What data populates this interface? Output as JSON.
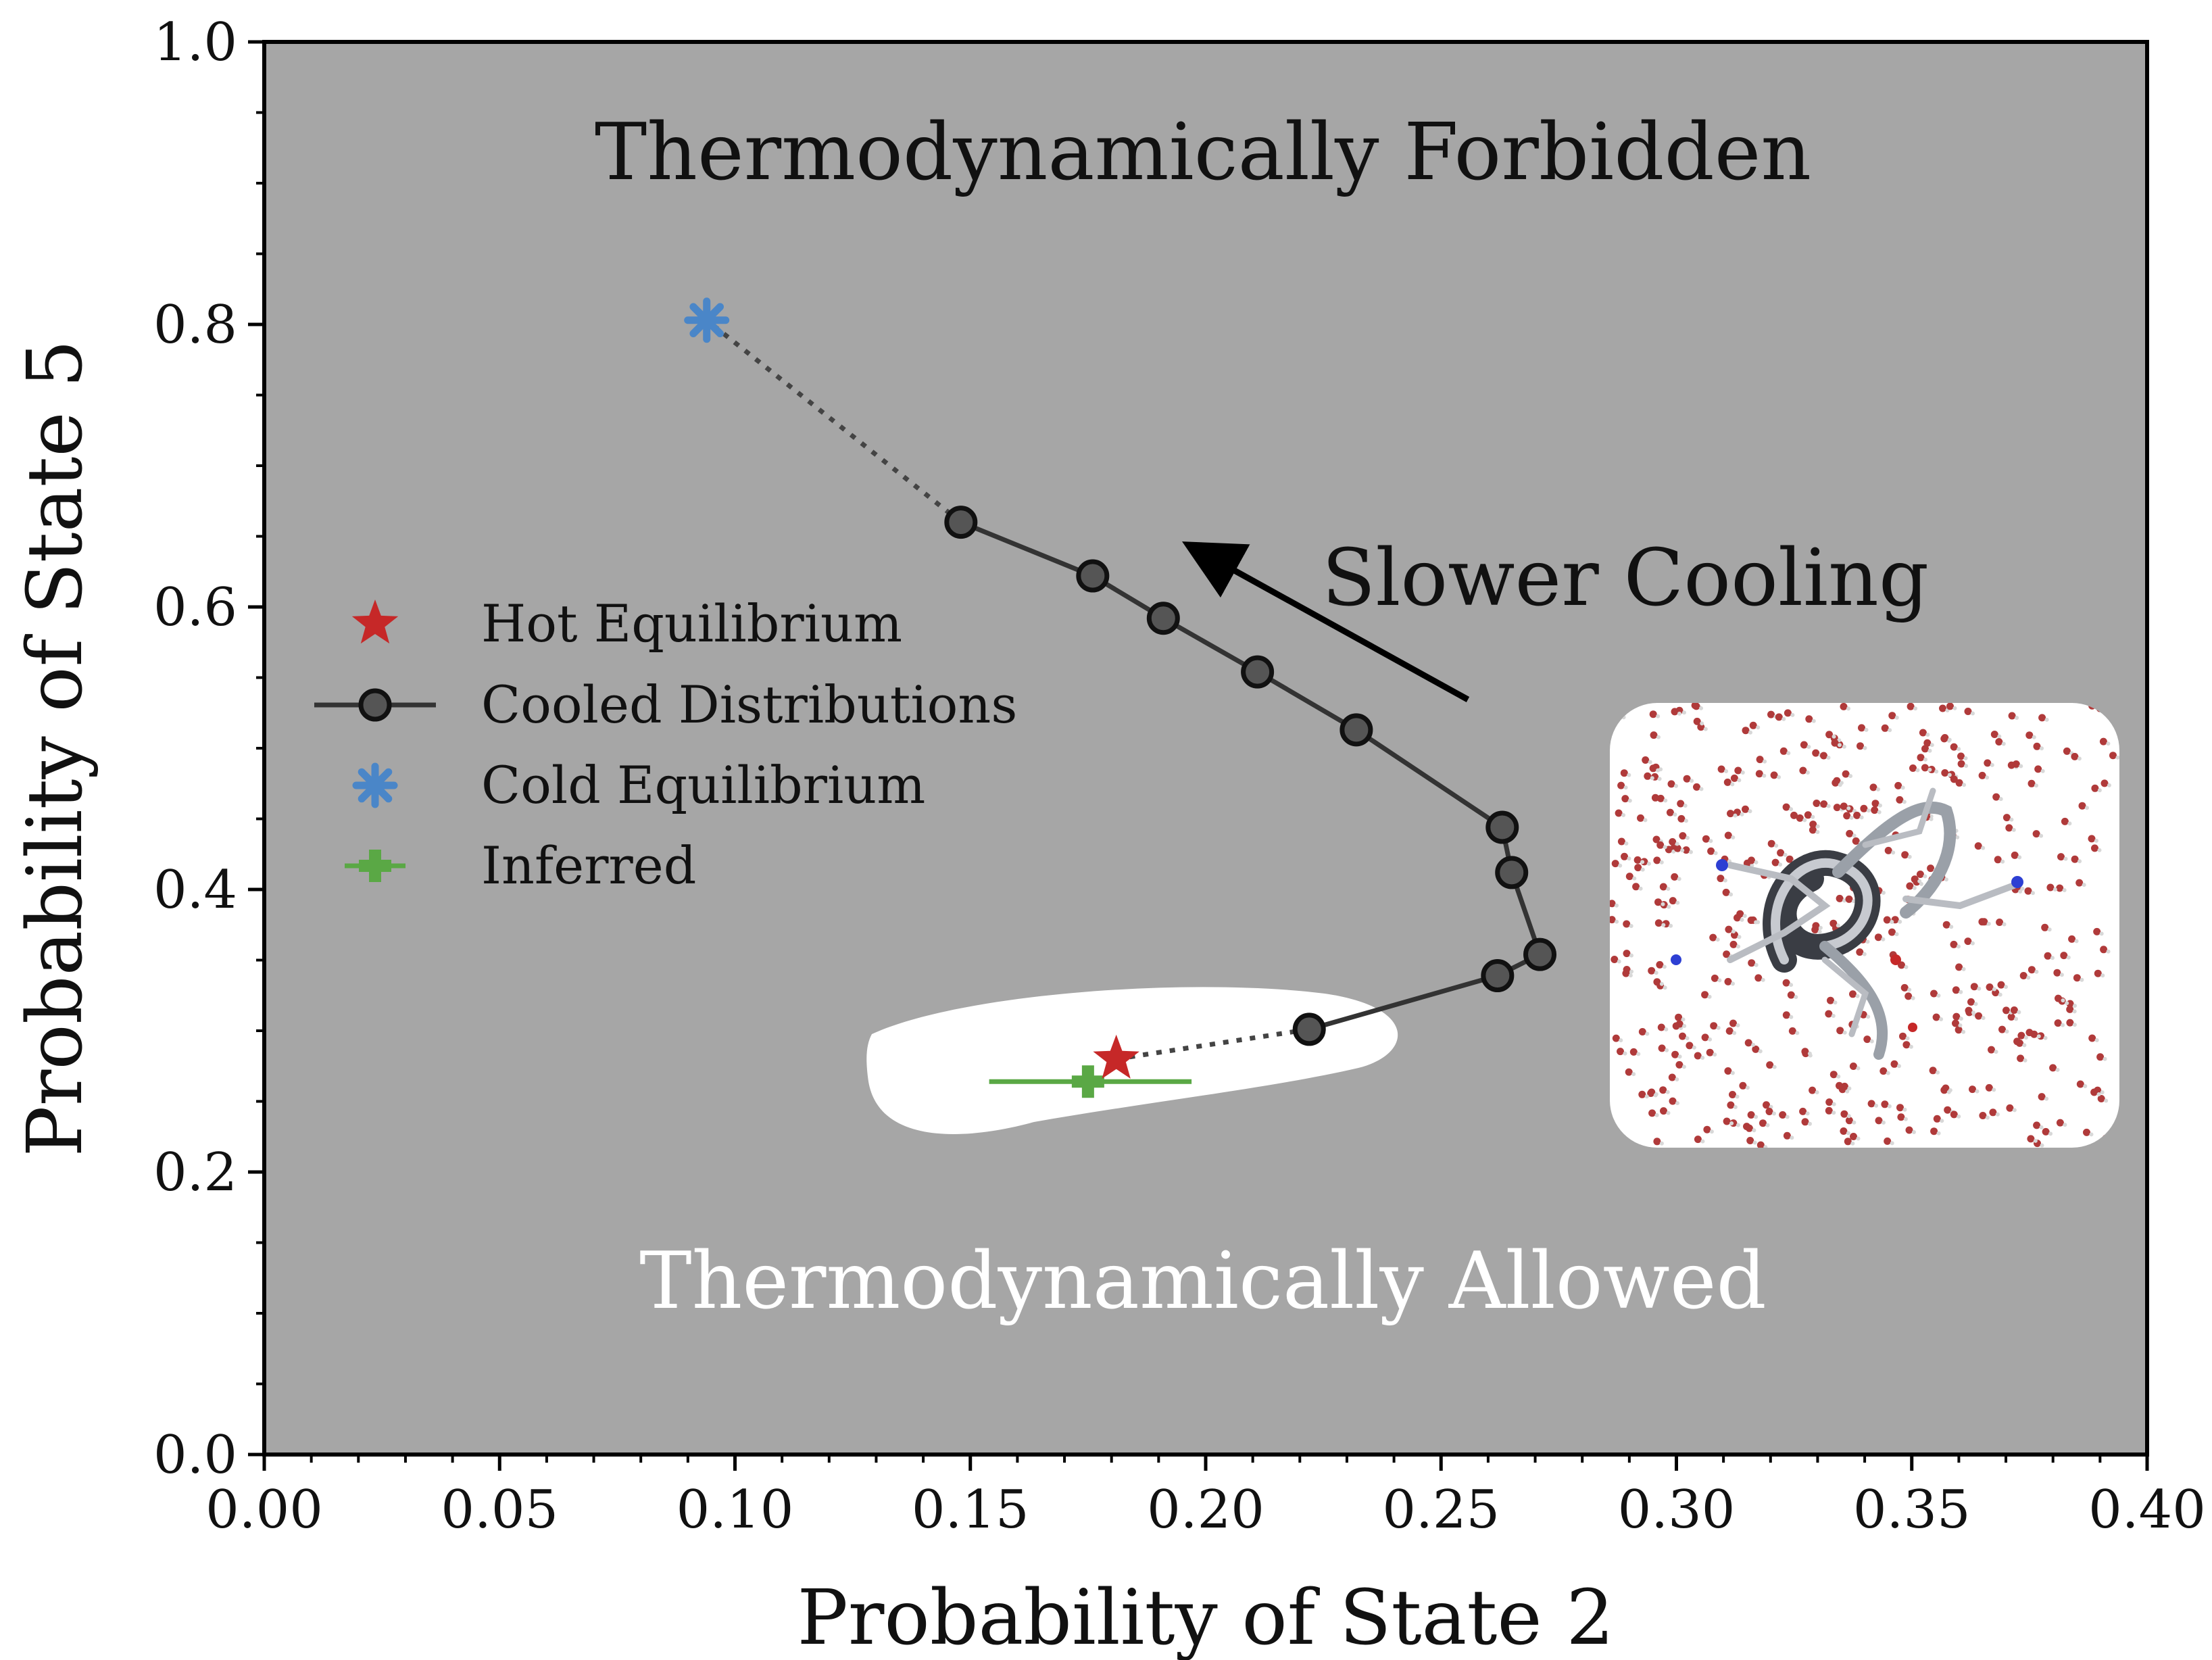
{
  "chart_data": {
    "type": "scatter",
    "xlabel": "Probability of State 2",
    "ylabel": "Probability of State 5",
    "xlim": [
      0.0,
      0.4
    ],
    "ylim": [
      0.0,
      1.0
    ],
    "x_ticks": [
      "0.00",
      "0.05",
      "0.10",
      "0.15",
      "0.20",
      "0.25",
      "0.30",
      "0.35",
      "0.40"
    ],
    "y_ticks": [
      "0.0",
      "0.2",
      "0.4",
      "0.6",
      "0.8",
      "1.0"
    ],
    "grid": false,
    "legend_position": "left",
    "background_color": "#a6a6a6",
    "allowed_region_color": "#ffffff",
    "annotations": {
      "forbidden": "Thermodynamically Forbidden",
      "allowed": "Thermodynamically Allowed",
      "cooling": "Slower Cooling"
    },
    "series": [
      {
        "name": "Hot Equilibrium",
        "marker": "star",
        "color": "#c62828",
        "points": [
          {
            "x": 0.181,
            "y": 0.28
          }
        ]
      },
      {
        "name": "Cooled Distributions",
        "marker": "circle",
        "color": "#333333",
        "line": true,
        "points": [
          {
            "x": 0.222,
            "y": 0.301
          },
          {
            "x": 0.262,
            "y": 0.339
          },
          {
            "x": 0.271,
            "y": 0.354
          },
          {
            "x": 0.265,
            "y": 0.412
          },
          {
            "x": 0.263,
            "y": 0.444
          },
          {
            "x": 0.232,
            "y": 0.513
          },
          {
            "x": 0.211,
            "y": 0.554
          },
          {
            "x": 0.191,
            "y": 0.592
          },
          {
            "x": 0.176,
            "y": 0.622
          },
          {
            "x": 0.148,
            "y": 0.66
          }
        ]
      },
      {
        "name": "Cold Equilibrium",
        "marker": "asterisk",
        "color": "#4a86c8",
        "points": [
          {
            "x": 0.094,
            "y": 0.803
          }
        ]
      },
      {
        "name": "Inferred",
        "marker": "plus",
        "color": "#5aa845",
        "points": [
          {
            "x": 0.175,
            "y": 0.264,
            "xerr_low": 0.154,
            "xerr_high": 0.197
          }
        ]
      }
    ]
  }
}
